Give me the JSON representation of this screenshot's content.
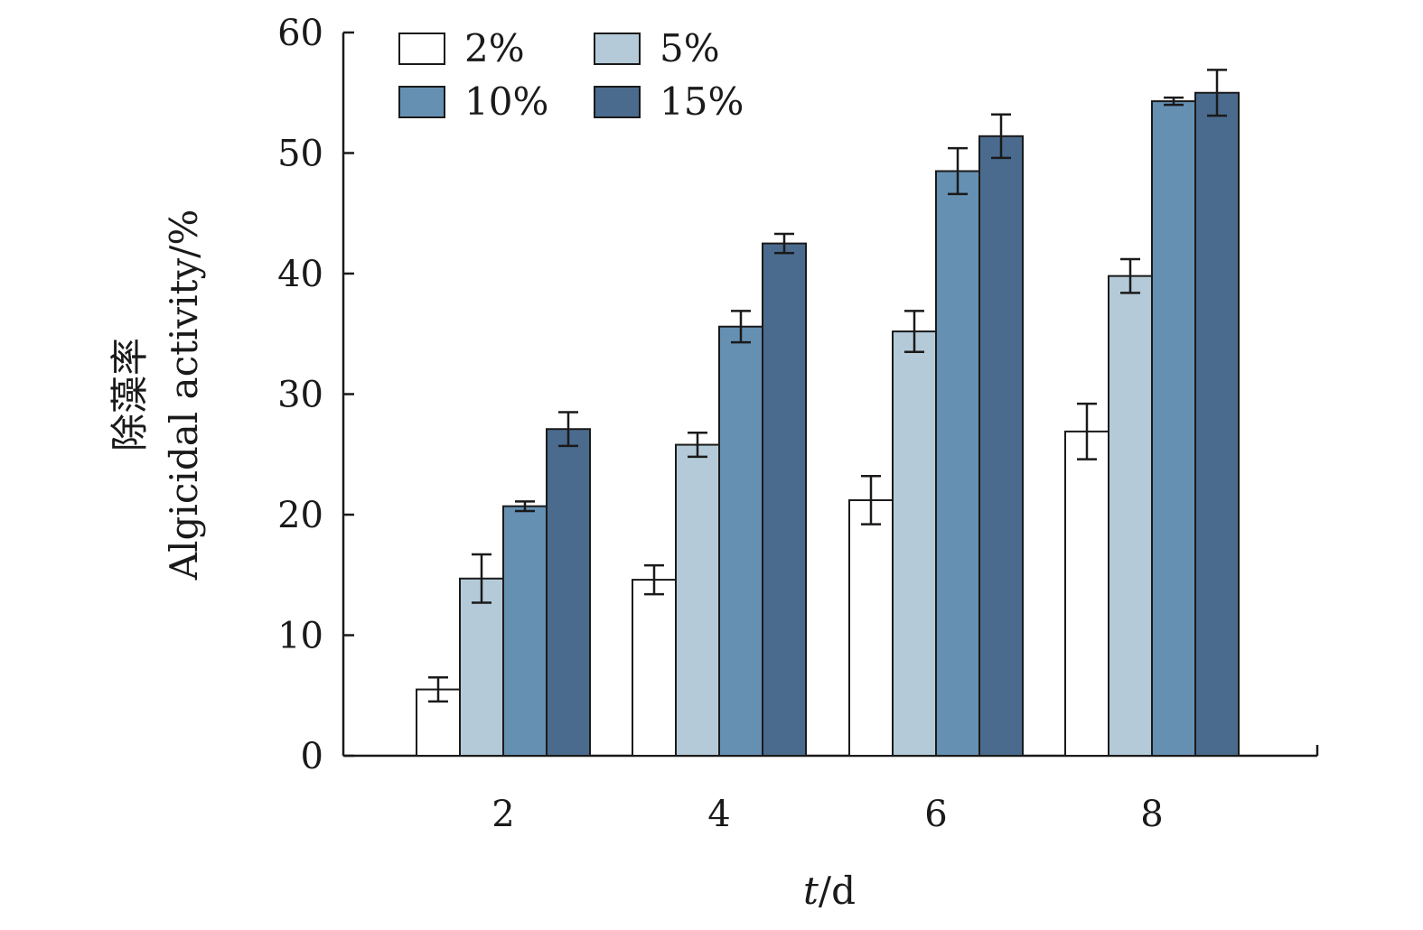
{
  "chart_data": {
    "type": "bar",
    "title": "",
    "xlabel": {
      "italic": "t",
      "rest": "/d"
    },
    "ylabel": {
      "cn": "除藻率",
      "en": "Algicidal activity/%"
    },
    "categories": [
      "2",
      "4",
      "6",
      "8"
    ],
    "ylim": [
      0,
      60
    ],
    "yticks": [
      0,
      10,
      20,
      30,
      40,
      50,
      60
    ],
    "grid": false,
    "legend_placement": "top-left",
    "series": [
      {
        "name": "2%",
        "color": "#ffffff",
        "values": [
          5.5,
          14.6,
          21.2,
          26.9
        ],
        "errors": [
          1.0,
          1.2,
          2.0,
          2.3
        ]
      },
      {
        "name": "5%",
        "color": "#b5cad8",
        "values": [
          14.7,
          25.8,
          35.2,
          39.8
        ],
        "errors": [
          2.0,
          1.0,
          1.7,
          1.4
        ]
      },
      {
        "name": "10%",
        "color": "#6590b2",
        "values": [
          20.7,
          35.6,
          48.5,
          54.3
        ],
        "errors": [
          0.4,
          1.3,
          1.9,
          0.3
        ]
      },
      {
        "name": "15%",
        "color": "#4a6b8e",
        "values": [
          27.1,
          42.5,
          51.4,
          55.0
        ],
        "errors": [
          1.4,
          0.8,
          1.8,
          1.9
        ]
      }
    ]
  }
}
